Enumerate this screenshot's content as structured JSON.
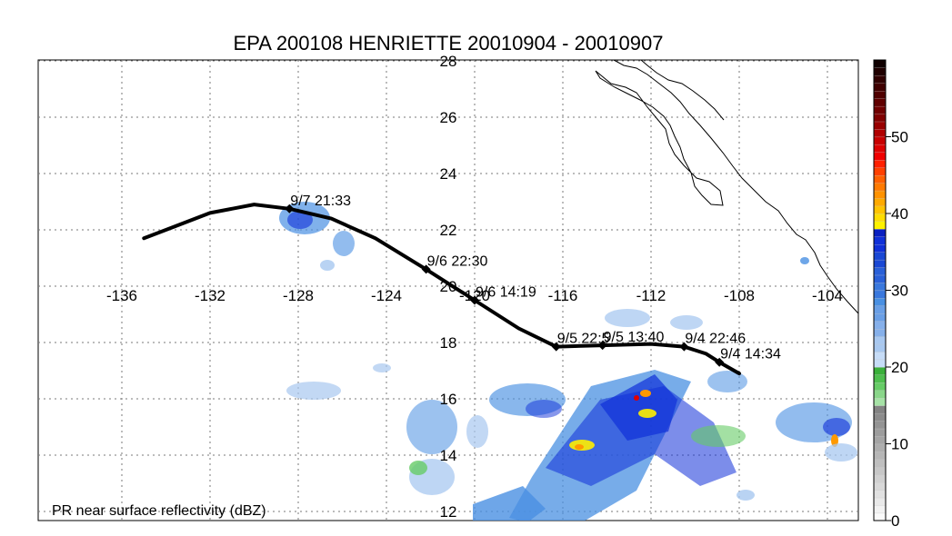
{
  "title": "EPA 200108 HENRIETTE 20010904 - 20010907",
  "map_label": "PR near surface reflectivity (dBZ)",
  "longitude_ticks": [
    "-136",
    "-132",
    "-128",
    "-124",
    "-120",
    "-116",
    "-112",
    "-108",
    "-104"
  ],
  "latitude_ticks": [
    "28",
    "26",
    "24",
    "22",
    "20",
    "18",
    "16",
    "14",
    "12"
  ],
  "colorbar": {
    "tick_labels": [
      "50",
      "40",
      "30",
      "20",
      "10",
      "0"
    ],
    "colors": {
      "low": "#ffffff",
      "gray_light": "#dedede",
      "gray_dark": "#8c8c8c",
      "green": "#66cc66",
      "blue_light": "#a8c8f0",
      "blue_mid": "#4a90e2",
      "blue_dark": "#1030d8",
      "yellow": "#ffee00",
      "orange": "#ff9900",
      "red": "#e00000",
      "dark_red": "#8b0000"
    }
  },
  "track": {
    "points": [
      {
        "lon": -135,
        "lat": 21.7
      },
      {
        "lon": -132,
        "lat": 22.6
      },
      {
        "lon": -130,
        "lat": 22.9
      },
      {
        "lon": -128.4,
        "lat": 22.75
      },
      {
        "lon": -126.5,
        "lat": 22.4
      },
      {
        "lon": -124.5,
        "lat": 21.7
      },
      {
        "lon": -122.2,
        "lat": 20.6
      },
      {
        "lon": -120,
        "lat": 19.5
      },
      {
        "lon": -118,
        "lat": 18.5
      },
      {
        "lon": -116.3,
        "lat": 17.85
      },
      {
        "lon": -114.2,
        "lat": 17.9
      },
      {
        "lon": -112,
        "lat": 17.95
      },
      {
        "lon": -110.5,
        "lat": 17.85
      },
      {
        "lon": -109.5,
        "lat": 17.6
      },
      {
        "lon": -108.9,
        "lat": 17.3
      },
      {
        "lon": -108,
        "lat": 16.9
      }
    ],
    "fixes": [
      {
        "label": "9/7 21:33",
        "lon": -128.4,
        "lat": 22.75
      },
      {
        "label": "9/6 22:30",
        "lon": -122.2,
        "lat": 20.6
      },
      {
        "label": "9/6 14:19",
        "lon": -120,
        "lat": 19.5
      },
      {
        "label": "9/5 22:5",
        "lon": -116.3,
        "lat": 17.85
      },
      {
        "label": "9/5 13:40",
        "lon": -114.2,
        "lat": 17.9
      },
      {
        "label": "9/4 22:46",
        "lon": -110.5,
        "lat": 17.85
      },
      {
        "label": "9/4 14:34",
        "lon": -108.9,
        "lat": 17.3
      }
    ]
  }
}
